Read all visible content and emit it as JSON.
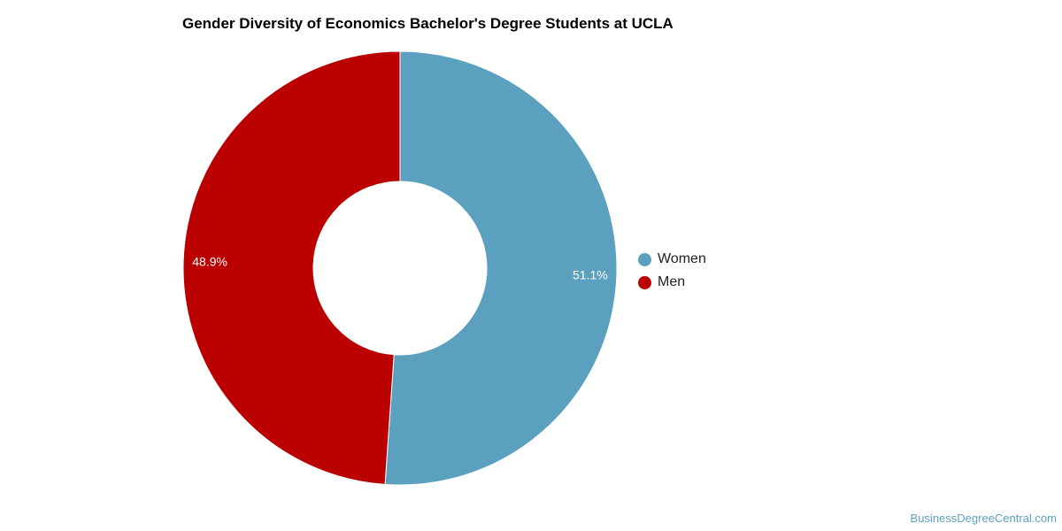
{
  "chart_data": {
    "type": "pie",
    "title": "Gender Diversity of Economics Bachelor's Degree Students at UCLA",
    "categories": [
      "Women",
      "Men"
    ],
    "values": [
      51.1,
      48.9
    ],
    "labels": [
      "51.1%",
      "48.9%"
    ],
    "colors": [
      "#5ba0bf",
      "#bb0000"
    ],
    "donut": true,
    "legend_position": "right"
  },
  "legend": {
    "items": [
      {
        "label": "Women",
        "color": "#5ba0bf"
      },
      {
        "label": "Men",
        "color": "#bb0000"
      }
    ]
  },
  "watermark": "BusinessDegreeCentral.com"
}
